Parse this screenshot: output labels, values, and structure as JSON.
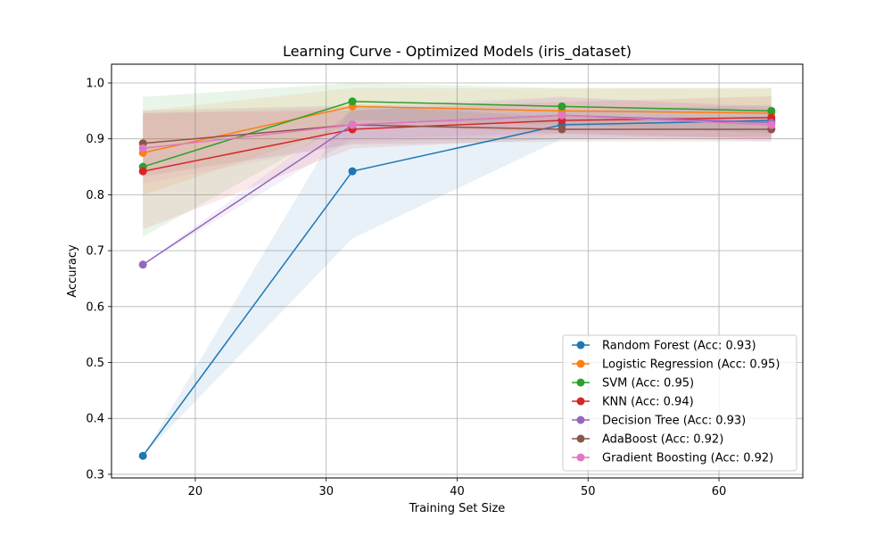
{
  "chart_data": {
    "type": "line",
    "title": "Learning Curve - Optimized Models (iris_dataset)",
    "xlabel": "Training Set Size",
    "ylabel": "Accuracy",
    "x": [
      16,
      32,
      48,
      64
    ],
    "xlim": [
      13.6,
      66.4
    ],
    "ylim": [
      0.2935,
      1.0335
    ],
    "xticks": [
      20,
      30,
      40,
      50,
      60
    ],
    "xtick_labels": [
      "20",
      "30",
      "40",
      "50",
      "60"
    ],
    "yticks": [
      0.3,
      0.4,
      0.5,
      0.6,
      0.7,
      0.8,
      0.9,
      1.0
    ],
    "ytick_labels": [
      "0.3",
      "0.4",
      "0.5",
      "0.6",
      "0.7",
      "0.8",
      "0.9",
      "1.0"
    ],
    "grid": true,
    "legend_position": "bottom-right",
    "series": [
      {
        "name": "Random Forest (Acc: 0.93)",
        "color": "#1f77b4",
        "values": [
          0.333,
          0.842,
          0.925,
          0.933
        ],
        "band_lower": [
          0.333,
          0.722,
          0.9,
          0.905
        ],
        "band_upper": [
          0.333,
          0.962,
          0.95,
          0.961
        ]
      },
      {
        "name": "Logistic Regression (Acc: 0.95)",
        "color": "#ff7f0e",
        "values": [
          0.875,
          0.958,
          0.95,
          0.946
        ],
        "band_lower": [
          0.8,
          0.925,
          0.91,
          0.9
        ],
        "band_upper": [
          0.95,
          0.991,
          0.99,
          0.992
        ]
      },
      {
        "name": "SVM (Acc: 0.95)",
        "color": "#2ca02c",
        "values": [
          0.85,
          0.967,
          0.958,
          0.95
        ],
        "band_lower": [
          0.725,
          0.933,
          0.925,
          0.91
        ],
        "band_upper": [
          0.975,
          1.0,
          0.991,
          0.99
        ]
      },
      {
        "name": "KNN (Acc: 0.94)",
        "color": "#d62728",
        "values": [
          0.842,
          0.917,
          0.933,
          0.938
        ],
        "band_lower": [
          0.738,
          0.883,
          0.9,
          0.9
        ],
        "band_upper": [
          0.946,
          0.951,
          0.966,
          0.976
        ]
      },
      {
        "name": "Decision Tree (Acc: 0.93)",
        "color": "#9467bd",
        "values": [
          0.675,
          0.925,
          0.942,
          0.929
        ],
        "band_lower": [
          0.675,
          0.9,
          0.91,
          0.9
        ],
        "band_upper": [
          0.675,
          0.95,
          0.974,
          0.958
        ]
      },
      {
        "name": "AdaBoost (Acc: 0.92)",
        "color": "#8c564b",
        "values": [
          0.892,
          0.925,
          0.917,
          0.917
        ],
        "band_lower": [
          0.833,
          0.89,
          0.895,
          0.895
        ],
        "band_upper": [
          0.951,
          0.96,
          0.939,
          0.939
        ]
      },
      {
        "name": "Gradient Boosting (Acc: 0.92)",
        "color": "#e377c2",
        "values": [
          0.883,
          0.925,
          0.942,
          0.925
        ],
        "band_lower": [
          0.82,
          0.892,
          0.908,
          0.895
        ],
        "band_upper": [
          0.946,
          0.958,
          0.976,
          0.955
        ]
      }
    ]
  }
}
